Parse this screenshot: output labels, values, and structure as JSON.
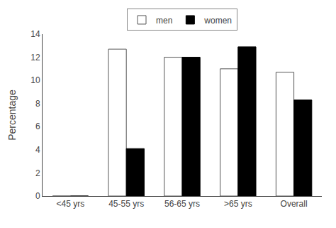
{
  "chart_data": {
    "type": "bar",
    "categories": [
      "<45 yrs",
      "45-55 yrs",
      "56-65 yrs",
      ">65 yrs",
      "Overall"
    ],
    "series": [
      {
        "name": "men",
        "color": "white",
        "values": [
          0,
          12.7,
          12.0,
          11.0,
          10.7
        ]
      },
      {
        "name": "women",
        "color": "black",
        "values": [
          0,
          4.1,
          12.0,
          12.9,
          8.3
        ]
      }
    ],
    "ylabel": "Percentage",
    "ylim": [
      0,
      14
    ],
    "yticks": [
      0,
      2,
      4,
      6,
      8,
      10,
      12,
      14
    ],
    "grid": false,
    "legend": "top"
  }
}
